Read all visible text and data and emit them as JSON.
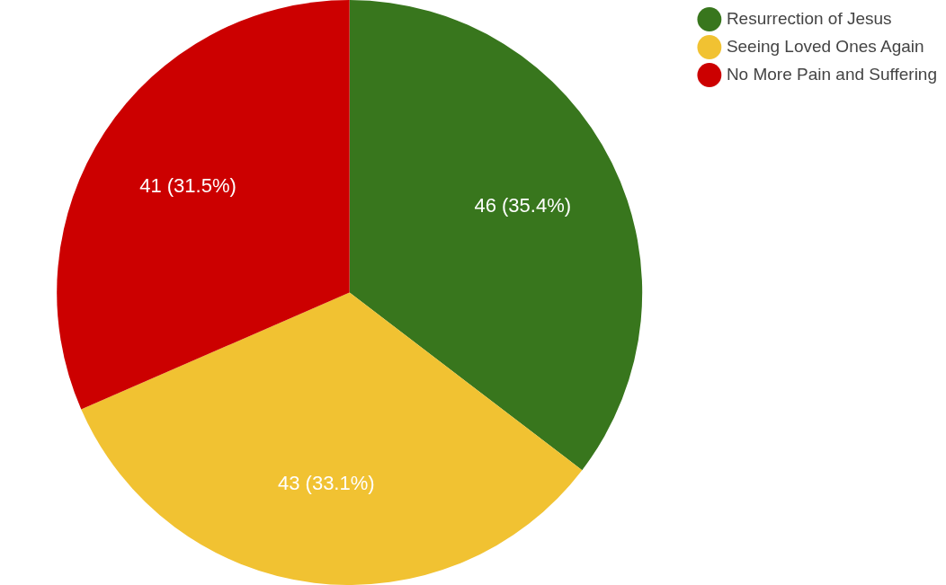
{
  "chart_data": {
    "type": "pie",
    "categories": [
      "Resurrection of Jesus",
      "Seeing Loved Ones Again",
      "No More Pain and Suffering"
    ],
    "values": [
      46,
      43,
      41
    ],
    "colors": [
      "#38761d",
      "#f1c232",
      "#cc0000"
    ],
    "value_labels": [
      "46 (35.4%)",
      "43 (33.1%)",
      "41 (31.5%)"
    ],
    "legend": "top right"
  }
}
